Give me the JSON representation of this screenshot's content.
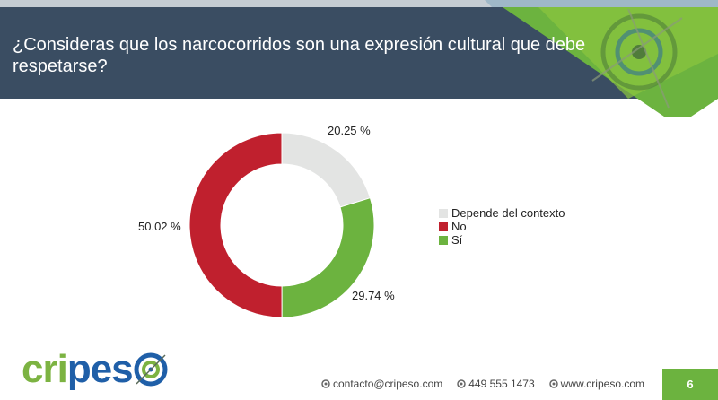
{
  "header": {
    "title": "¿Consideras que los narcocorridos son una expresión cultural que debe respetarse?"
  },
  "chart_data": {
    "type": "pie",
    "variant": "donut",
    "categories": [
      "Depende del contexto",
      "Sí",
      "No"
    ],
    "values": [
      20.25,
      29.74,
      50.02
    ],
    "labels": [
      "20.25 %",
      "29.74 %",
      "50.02 %"
    ],
    "colors": [
      "#e3e4e3",
      "#6cb33f",
      "#c0202e"
    ],
    "legend": {
      "position": "right",
      "entries": [
        {
          "name": "Depende del contexto",
          "color": "#e3e4e3"
        },
        {
          "name": "No",
          "color": "#c0202e"
        },
        {
          "name": "Sí",
          "color": "#6cb33f"
        }
      ]
    }
  },
  "footer": {
    "brand_cri": "cri",
    "brand_pes": "pes",
    "email": "contacto@cripeso.com",
    "phone": "449 555 1473",
    "website": "www.cripeso.com",
    "page_number": "6"
  }
}
